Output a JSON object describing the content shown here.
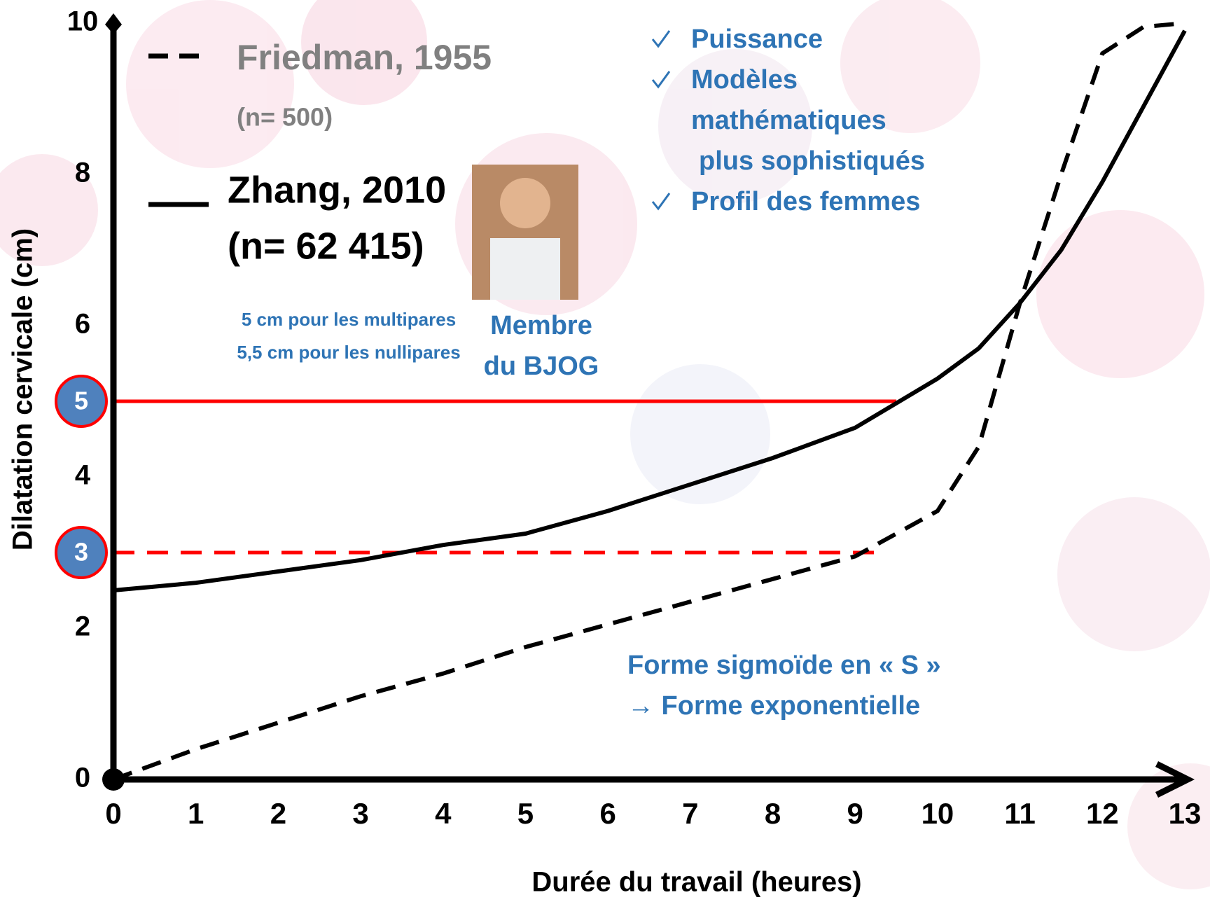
{
  "chart_data": {
    "type": "line",
    "x_label": "Durée du travail (heures)",
    "y_label": "Dilatation cervicale (cm)",
    "x": [
      0,
      1,
      2,
      3,
      4,
      5,
      6,
      7,
      8,
      9,
      10,
      10.5,
      11,
      11.5,
      12,
      12.5,
      13
    ],
    "series": [
      {
        "name": "Friedman, 1955",
        "sample": "(n= 500)",
        "color": "#000000",
        "dash": true,
        "values": [
          0,
          0.4,
          0.75,
          1.1,
          1.4,
          1.75,
          2.05,
          2.35,
          2.65,
          2.95,
          3.55,
          4.4,
          6.3,
          8.0,
          9.6,
          9.95,
          10
        ]
      },
      {
        "name": "Zhang, 2010",
        "sample": "(n= 62 415)",
        "color": "#000000",
        "dash": false,
        "values": [
          2.5,
          2.6,
          2.75,
          2.9,
          3.1,
          3.25,
          3.55,
          3.9,
          4.25,
          4.65,
          5.3,
          5.7,
          6.3,
          7.0,
          7.9,
          8.9,
          9.9
        ]
      }
    ],
    "xlim": [
      0,
      13
    ],
    "ylim": [
      0,
      10
    ],
    "xticks": [
      0,
      1,
      2,
      3,
      4,
      5,
      6,
      7,
      8,
      9,
      10,
      11,
      12,
      13
    ],
    "yticks": [
      0,
      2,
      4,
      6,
      8,
      10
    ],
    "reference_lines": [
      {
        "label": "5",
        "value": 5,
        "x_end": 9.5,
        "dash": false,
        "color": "#ff0000"
      },
      {
        "label": "3",
        "value": 3,
        "x_end": 9.3,
        "dash": true,
        "color": "#ff0000"
      }
    ],
    "checklist": [
      "Puissance",
      "Modèles",
      "mathématiques",
      "plus sophistiqués",
      "Profil des femmes"
    ],
    "notes": [
      "5 cm pour les multipares",
      "5,5 cm pour les nullipares"
    ],
    "photo_caption": [
      "Membre",
      "du BJOG"
    ],
    "annotation": [
      "Forme sigmoïde en « S »",
      "→ Forme exponentielle"
    ]
  }
}
